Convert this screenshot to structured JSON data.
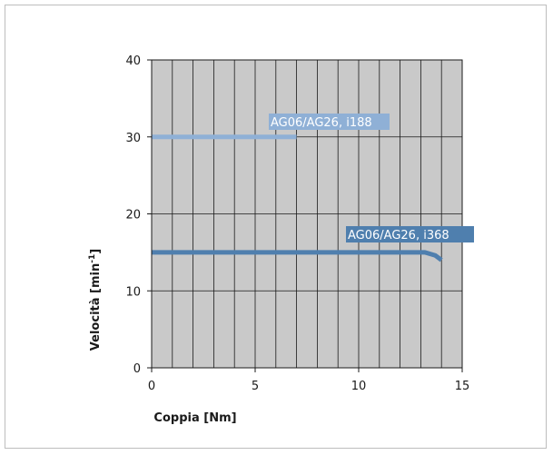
{
  "chart_data": {
    "type": "line",
    "xlabel": "Coppia [Nm]",
    "ylabel_text": "Velocità [min",
    "ylabel_sup": "-1",
    "ylabel_close": "]",
    "xlim": [
      0,
      15
    ],
    "ylim": [
      0,
      40
    ],
    "x_ticks": [
      0,
      5,
      10,
      15
    ],
    "y_ticks": [
      0,
      10,
      20,
      30,
      40
    ],
    "grid": true,
    "colors": {
      "plot_bg": "#c9c9c9",
      "grid": "#1a1a1a",
      "series_1": "#8fb0d6",
      "series_2": "#4f7fae",
      "label_1_bg": "#8fb0d6",
      "label_2_bg": "#4f7fae"
    },
    "series": [
      {
        "name": "AG06/AG26, i188",
        "points": [
          [
            0,
            30
          ],
          [
            7,
            30
          ]
        ]
      },
      {
        "name": "AG06/AG26, i368",
        "points": [
          [
            0,
            15
          ],
          [
            13.2,
            15
          ],
          [
            13.7,
            14.6
          ],
          [
            14,
            14.0
          ]
        ]
      }
    ]
  }
}
